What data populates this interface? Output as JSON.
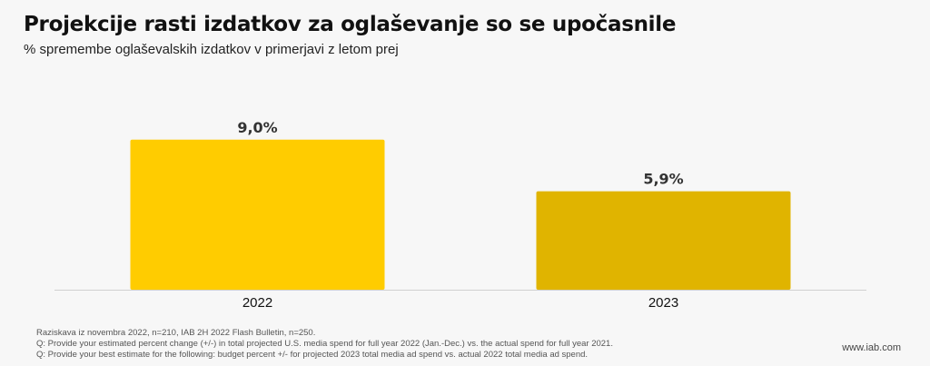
{
  "header": {
    "title": "Projekcije rasti izdatkov za oglaševanje so se upočasnile",
    "subtitle": "% spremembe oglaševalskih izdatkov v primerjavi z letom prej"
  },
  "chart_data": {
    "type": "bar",
    "categories": [
      "2022",
      "2023"
    ],
    "values": [
      9.0,
      5.9
    ],
    "value_labels": [
      "9,0%",
      "5,9%"
    ],
    "colors": [
      "#ffcc00",
      "#e0b400"
    ],
    "title": "",
    "xlabel": "",
    "ylabel": "",
    "ylim": [
      0,
      12.2
    ],
    "grid": false,
    "legend": "none"
  },
  "footnotes": [
    "Raziskava iz novembra 2022, n=210, IAB 2H 2022 Flash Bulletin, n=250.",
    "Q: Provide your estimated percent change (+/-) in total projected U.S. media spend for full year 2022 (Jan.-Dec.) vs. the actual spend for full year 2021.",
    "Q: Provide your best estimate for the following: budget percent +/- for projected 2023 total media ad spend vs. actual 2022 total media ad spend."
  ],
  "source": "www.iab.com"
}
